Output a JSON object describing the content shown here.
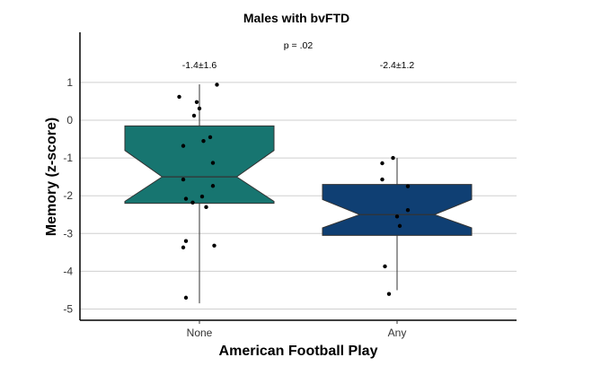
{
  "chart_data": {
    "type": "boxplot",
    "title": "Males with bvFTD",
    "xlabel": "American Football Play",
    "ylabel": "Memory (z-score)",
    "ylim": [
      -5.2,
      2.4
    ],
    "yticks": [
      1,
      0,
      -1,
      -2,
      -3,
      -4,
      -5
    ],
    "ytick_labels": [
      "1",
      "0",
      "-1",
      "-2",
      "-3",
      "-4",
      "-5"
    ],
    "categories": [
      "None",
      "Any"
    ],
    "grid": "horizontal",
    "p_value_label": "p = .02",
    "groups": [
      {
        "name": "None",
        "color": "#177570",
        "mean_sd_label": "-1.4±1.6",
        "whisker_low": -4.85,
        "q1": -2.2,
        "median": -1.5,
        "q3": -0.15,
        "whisker_high": 0.95,
        "notch_low": -2.15,
        "notch_high": -0.8,
        "points": [
          {
            "x": -0.15,
            "y": 0.62
          },
          {
            "x": -0.02,
            "y": 0.48
          },
          {
            "x": 0.13,
            "y": 0.94
          },
          {
            "x": 0.0,
            "y": 0.31
          },
          {
            "x": -0.04,
            "y": 0.12
          },
          {
            "x": 0.08,
            "y": -0.45
          },
          {
            "x": 0.03,
            "y": -0.55
          },
          {
            "x": -0.12,
            "y": -0.68
          },
          {
            "x": 0.1,
            "y": -1.13
          },
          {
            "x": -0.12,
            "y": -1.57
          },
          {
            "x": 0.1,
            "y": -1.74
          },
          {
            "x": -0.1,
            "y": -2.08
          },
          {
            "x": 0.02,
            "y": -2.02
          },
          {
            "x": -0.05,
            "y": -2.18
          },
          {
            "x": 0.05,
            "y": -2.3
          },
          {
            "x": -0.1,
            "y": -3.2
          },
          {
            "x": 0.11,
            "y": -3.32
          },
          {
            "x": -0.12,
            "y": -3.37
          },
          {
            "x": -0.1,
            "y": -4.7
          }
        ]
      },
      {
        "name": "Any",
        "color": "#0f3f73",
        "mean_sd_label": "-2.4±1.2",
        "whisker_low": -4.5,
        "q1": -3.05,
        "median": -2.5,
        "q3": -1.7,
        "whisker_high": -1.0,
        "notch_low": -2.85,
        "notch_high": -2.1,
        "points": [
          {
            "x": -0.03,
            "y": -1.0
          },
          {
            "x": -0.11,
            "y": -1.14
          },
          {
            "x": -0.11,
            "y": -1.57
          },
          {
            "x": 0.08,
            "y": -1.75
          },
          {
            "x": 0.08,
            "y": -2.38
          },
          {
            "x": 0.0,
            "y": -2.55
          },
          {
            "x": 0.02,
            "y": -2.8
          },
          {
            "x": -0.09,
            "y": -3.87
          },
          {
            "x": -0.06,
            "y": -4.6
          }
        ]
      }
    ]
  }
}
